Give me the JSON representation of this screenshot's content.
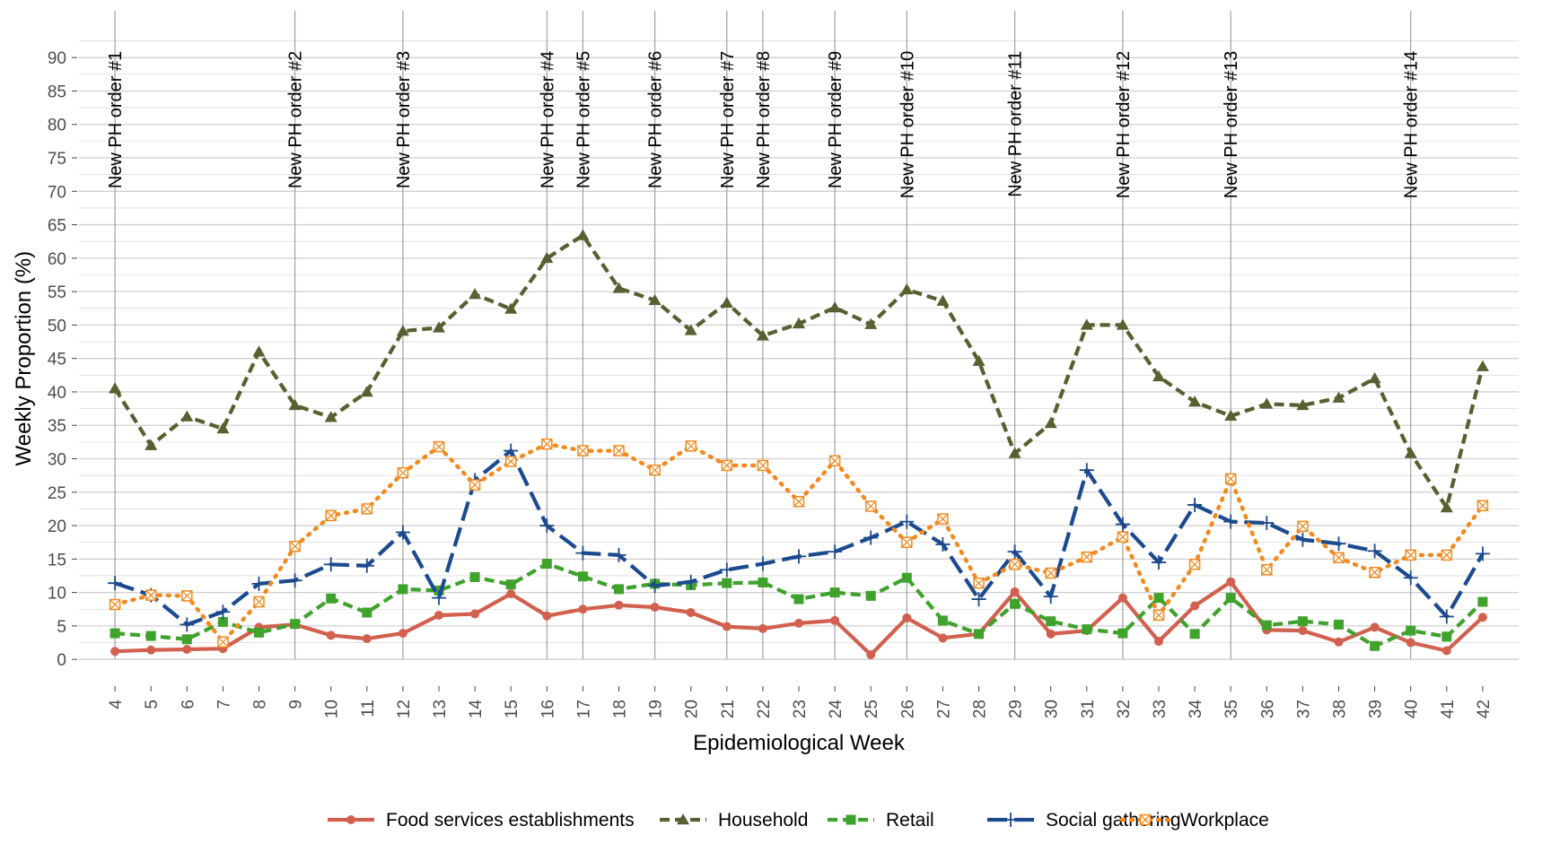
{
  "chart_data": {
    "type": "line",
    "xlabel": "Epidemiological Week",
    "ylabel": "Weekly Proportion (%)",
    "ylim": [
      -4,
      97
    ],
    "yticks": [
      "0",
      "5",
      "10",
      "15",
      "20",
      "25",
      "30",
      "35",
      "40",
      "45",
      "50",
      "55",
      "60",
      "65",
      "70",
      "75",
      "80",
      "85",
      "90"
    ],
    "x": [
      4,
      5,
      6,
      7,
      8,
      9,
      10,
      11,
      12,
      13,
      14,
      15,
      16,
      17,
      18,
      19,
      20,
      21,
      22,
      23,
      24,
      25,
      26,
      27,
      28,
      29,
      30,
      31,
      32,
      33,
      34,
      35,
      36,
      37,
      38,
      39,
      40,
      41,
      42
    ],
    "x_tick_labels": [
      "4",
      "5",
      "6",
      "7",
      "8",
      "9",
      "10",
      "11",
      "12",
      "13",
      "14",
      "15",
      "16",
      "17",
      "18",
      "19",
      "20",
      "21",
      "22",
      "23",
      "24",
      "25",
      "26",
      "27",
      "28",
      "29",
      "30",
      "31",
      "32",
      "33",
      "34",
      "35",
      "36",
      "37",
      "38",
      "39",
      "40",
      "41",
      "42"
    ],
    "grid": true,
    "legend_position": "bottom",
    "series": [
      {
        "name": "Food services establishments",
        "color": "#d1604f",
        "line_style": "solid",
        "marker": "circle",
        "values": [
          1.2,
          1.4,
          1.5,
          1.6,
          4.8,
          5.2,
          3.6,
          3.1,
          3.9,
          6.6,
          6.8,
          9.8,
          6.5,
          7.5,
          8.1,
          7.8,
          7.0,
          4.9,
          4.6,
          5.4,
          5.8,
          0.7,
          6.2,
          3.2,
          3.8,
          10.1,
          3.8,
          4.3,
          9.2,
          2.7,
          8.0,
          11.6,
          4.4,
          4.3,
          2.6,
          4.8,
          2.5,
          1.3,
          6.3
        ]
      },
      {
        "name": "Household",
        "color": "#5a5e30",
        "line_style": "dashed",
        "marker": "triangle",
        "values": [
          40.5,
          32.0,
          36.3,
          34.5,
          46.0,
          38.0,
          36.2,
          40.0,
          49.1,
          49.6,
          54.6,
          52.4,
          60.0,
          63.4,
          55.5,
          53.7,
          49.2,
          53.3,
          48.4,
          50.2,
          52.6,
          50.1,
          55.3,
          53.6,
          44.6,
          30.8,
          35.3,
          50.0,
          50.0,
          42.3,
          38.5,
          36.4,
          38.2,
          38.0,
          39.1,
          42.0,
          30.8,
          22.7,
          43.8
        ]
      },
      {
        "name": "Retail",
        "color": "#3fa22c",
        "line_style": "dashed",
        "marker": "square",
        "values": [
          3.9,
          3.5,
          3.0,
          5.6,
          4.0,
          5.3,
          9.1,
          7.0,
          10.5,
          10.3,
          12.3,
          11.2,
          14.3,
          12.4,
          10.5,
          11.3,
          11.1,
          11.4,
          11.5,
          9.0,
          10.0,
          9.5,
          12.2,
          5.8,
          3.8,
          8.3,
          5.7,
          4.5,
          3.9,
          9.2,
          3.8,
          9.2,
          5.1,
          5.7,
          5.2,
          2.0,
          4.3,
          3.4,
          8.6
        ]
      },
      {
        "name": "Social gathering",
        "color": "#1c4a8e",
        "line_style": "longdash",
        "marker": "plus",
        "values": [
          11.4,
          9.6,
          5.2,
          7.1,
          11.3,
          11.8,
          14.2,
          14.0,
          19.0,
          9.2,
          26.8,
          31.2,
          20.0,
          15.9,
          15.6,
          11.0,
          11.6,
          13.4,
          14.3,
          15.4,
          16.1,
          18.2,
          20.6,
          17.2,
          9.0,
          16.1,
          9.4,
          28.3,
          20.2,
          14.5,
          23.1,
          20.6,
          20.4,
          17.9,
          17.3,
          16.2,
          12.2,
          6.4,
          15.8
        ]
      },
      {
        "name": "Workplace",
        "color": "#f28a1e",
        "line_style": "dotted",
        "marker": "boxed-x",
        "values": [
          8.2,
          9.6,
          9.5,
          2.6,
          8.6,
          16.9,
          21.5,
          22.5,
          27.9,
          31.8,
          26.1,
          29.6,
          32.2,
          31.2,
          31.2,
          28.3,
          31.9,
          29.0,
          29.0,
          23.6,
          29.7,
          22.9,
          17.5,
          21.0,
          11.4,
          14.2,
          12.9,
          15.3,
          18.3,
          6.6,
          14.2,
          27.0,
          13.4,
          19.9,
          15.2,
          13.0,
          15.6,
          15.6,
          23.0
        ]
      }
    ],
    "annotations": [
      {
        "x": 4,
        "label": "New PH order #1"
      },
      {
        "x": 9,
        "label": "New PH order #2"
      },
      {
        "x": 12,
        "label": "New PH order #3"
      },
      {
        "x": 16,
        "label": "New PH order #4"
      },
      {
        "x": 17,
        "label": "New PH order #5"
      },
      {
        "x": 19,
        "label": "New PH order #6"
      },
      {
        "x": 21,
        "label": "New PH order #7"
      },
      {
        "x": 22,
        "label": "New PH order #8"
      },
      {
        "x": 24,
        "label": "New PH order #9"
      },
      {
        "x": 26,
        "label": "New PH order #10"
      },
      {
        "x": 29,
        "label": "New PH order #11"
      },
      {
        "x": 32,
        "label": "New PH order #12"
      },
      {
        "x": 35,
        "label": "New PH order #13"
      },
      {
        "x": 40,
        "label": "New PH order #14"
      }
    ]
  }
}
